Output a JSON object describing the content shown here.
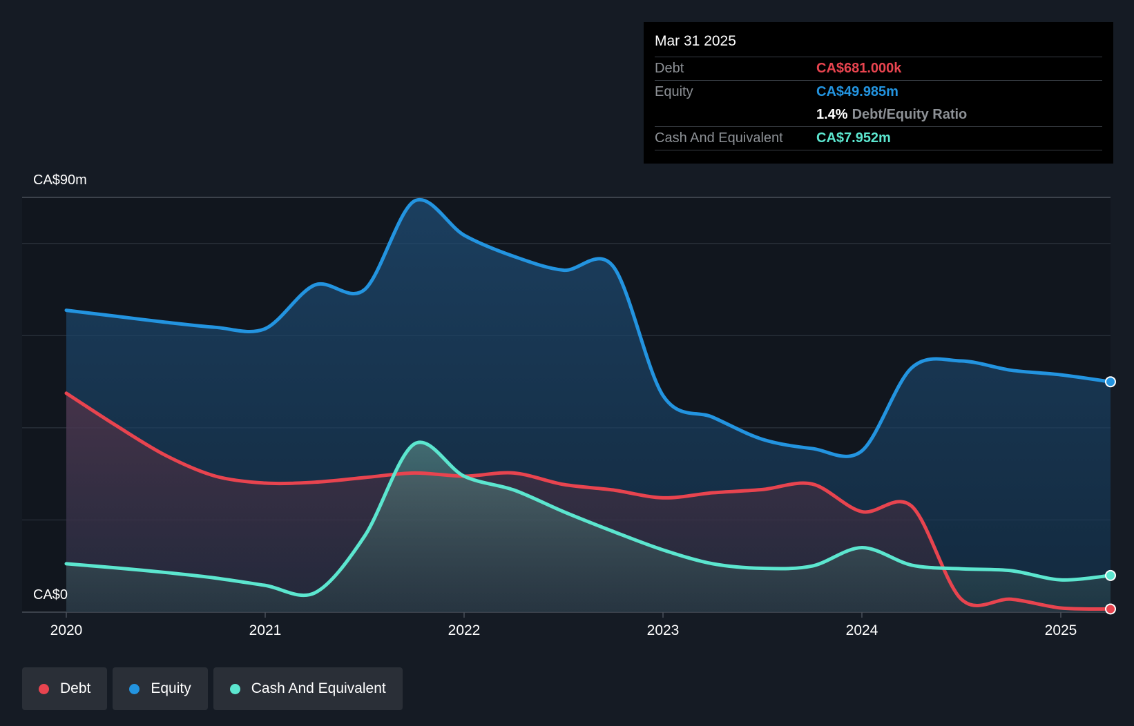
{
  "tooltip": {
    "date": "Mar 31 2025",
    "debt_label": "Debt",
    "debt_value": "CA$681.000k",
    "equity_label": "Equity",
    "equity_value": "CA$49.985m",
    "ratio_value": "1.4%",
    "ratio_label": "Debt/Equity Ratio",
    "cash_label": "Cash And Equivalent",
    "cash_value": "CA$7.952m"
  },
  "legend": {
    "debt": "Debt",
    "equity": "Equity",
    "cash": "Cash And Equivalent"
  },
  "chart_data": {
    "type": "area",
    "title": "",
    "ylabel_top": "CA$90m",
    "ylabel_bottom": "CA$0",
    "ylim": [
      0,
      90
    ],
    "xlim": [
      2020.0,
      2025.25
    ],
    "x_ticks": [
      "2020",
      "2021",
      "2022",
      "2023",
      "2024",
      "2025"
    ],
    "x_tick_values": [
      2020,
      2021,
      2022,
      2023,
      2024,
      2025
    ],
    "colors": {
      "debt": "#e8444f",
      "equity": "#2394e0",
      "cash": "#5ce6cf"
    },
    "series": [
      {
        "name": "Equity",
        "key": "equity",
        "x": [
          2020.0,
          2020.25,
          2020.5,
          2020.75,
          2021.0,
          2021.25,
          2021.5,
          2021.75,
          2022.0,
          2022.25,
          2022.5,
          2022.75,
          2023.0,
          2023.25,
          2023.5,
          2023.75,
          2024.0,
          2024.25,
          2024.5,
          2024.75,
          2025.0,
          2025.25
        ],
        "values": [
          65.5,
          64.2,
          62.9,
          61.8,
          61.5,
          71.0,
          70.0,
          89.2,
          81.8,
          77.2,
          74.2,
          75.0,
          47.0,
          42.3,
          37.5,
          35.5,
          35.0,
          53.0,
          54.5,
          52.5,
          51.5,
          49.985
        ]
      },
      {
        "name": "Debt",
        "key": "debt",
        "x": [
          2020.0,
          2020.25,
          2020.5,
          2020.75,
          2021.0,
          2021.25,
          2021.5,
          2021.75,
          2022.0,
          2022.25,
          2022.5,
          2022.75,
          2023.0,
          2023.25,
          2023.5,
          2023.75,
          2024.0,
          2024.25,
          2024.5,
          2024.75,
          2025.0,
          2025.25
        ],
        "values": [
          47.5,
          40.5,
          34.0,
          29.5,
          28.0,
          28.2,
          29.2,
          30.2,
          29.5,
          30.2,
          27.7,
          26.5,
          24.8,
          25.9,
          26.6,
          27.8,
          21.8,
          23.0,
          2.8,
          2.8,
          0.9,
          0.681
        ]
      },
      {
        "name": "Cash And Equivalent",
        "key": "cash",
        "x": [
          2020.0,
          2020.25,
          2020.5,
          2020.75,
          2021.0,
          2021.25,
          2021.5,
          2021.75,
          2022.0,
          2022.25,
          2022.5,
          2022.75,
          2023.0,
          2023.25,
          2023.5,
          2023.75,
          2024.0,
          2024.25,
          2024.5,
          2024.75,
          2025.0,
          2025.25
        ],
        "values": [
          10.5,
          9.6,
          8.6,
          7.4,
          5.8,
          4.2,
          16.5,
          36.5,
          29.5,
          26.5,
          21.8,
          17.5,
          13.5,
          10.5,
          9.5,
          10.0,
          14.0,
          10.2,
          9.4,
          9.0,
          7.0,
          7.952
        ]
      }
    ]
  }
}
